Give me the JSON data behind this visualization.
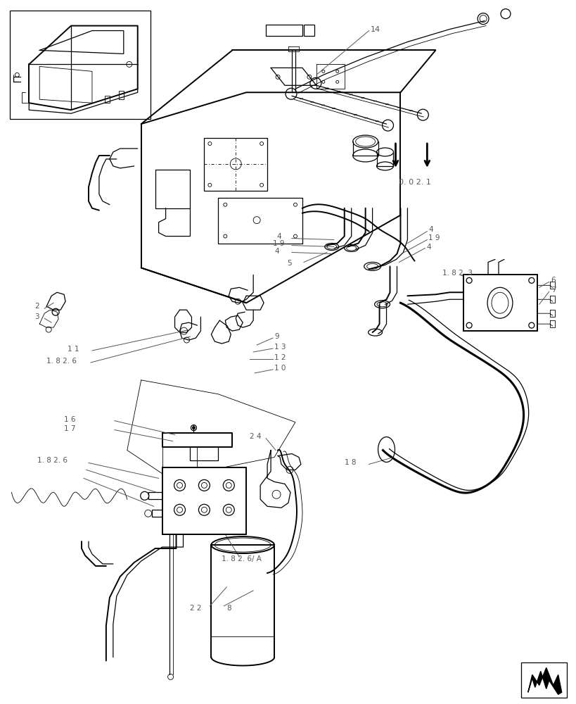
{
  "bg_color": "#ffffff",
  "line_color": "#000000",
  "fig_width": 8.2,
  "fig_height": 10.0,
  "dpi": 100
}
